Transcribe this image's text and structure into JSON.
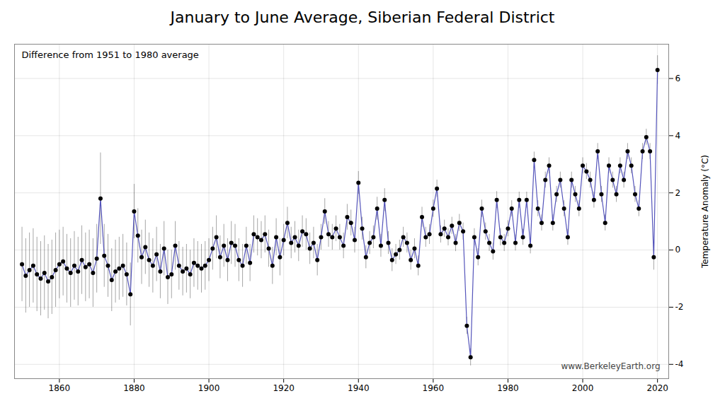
{
  "chart_data": {
    "type": "line",
    "title": "January to June Average, Siberian Federal District",
    "subtitle": "Difference from 1951 to 1980 average",
    "ylabel": "Temperature Anomaly (°C)",
    "annotations": [
      "www.BerkeleyEarth.org"
    ],
    "color": "#5555bb",
    "marker": "dot",
    "grid": true,
    "xlim": [
      1848,
      2023
    ],
    "ylim": [
      -4.5,
      7.2
    ],
    "xticks": [
      1860,
      1880,
      1900,
      1920,
      1940,
      1960,
      1980,
      2000,
      2020
    ],
    "yticks": [
      -4,
      -2,
      0,
      2,
      4,
      6
    ],
    "x": [
      1850,
      1851,
      1852,
      1853,
      1854,
      1855,
      1856,
      1857,
      1858,
      1859,
      1860,
      1861,
      1862,
      1863,
      1864,
      1865,
      1866,
      1867,
      1868,
      1869,
      1870,
      1871,
      1872,
      1873,
      1874,
      1875,
      1876,
      1877,
      1878,
      1879,
      1880,
      1881,
      1882,
      1883,
      1884,
      1885,
      1886,
      1887,
      1888,
      1889,
      1890,
      1891,
      1892,
      1893,
      1894,
      1895,
      1896,
      1897,
      1898,
      1899,
      1900,
      1901,
      1902,
      1903,
      1904,
      1905,
      1906,
      1907,
      1908,
      1909,
      1910,
      1911,
      1912,
      1913,
      1914,
      1915,
      1916,
      1917,
      1918,
      1919,
      1920,
      1921,
      1922,
      1923,
      1924,
      1925,
      1926,
      1927,
      1928,
      1929,
      1930,
      1931,
      1932,
      1933,
      1934,
      1935,
      1936,
      1937,
      1938,
      1939,
      1940,
      1941,
      1942,
      1943,
      1944,
      1945,
      1946,
      1947,
      1948,
      1949,
      1950,
      1951,
      1952,
      1953,
      1954,
      1955,
      1956,
      1957,
      1958,
      1959,
      1960,
      1961,
      1962,
      1963,
      1964,
      1965,
      1966,
      1967,
      1968,
      1969,
      1970,
      1971,
      1972,
      1973,
      1974,
      1975,
      1976,
      1977,
      1978,
      1979,
      1980,
      1981,
      1982,
      1983,
      1984,
      1985,
      1986,
      1987,
      1988,
      1989,
      1990,
      1991,
      1992,
      1993,
      1994,
      1995,
      1996,
      1997,
      1998,
      1999,
      2000,
      2001,
      2002,
      2003,
      2004,
      2005,
      2006,
      2007,
      2008,
      2009,
      2010,
      2011,
      2012,
      2013,
      2014,
      2015,
      2016,
      2017,
      2018,
      2019,
      2020
    ],
    "values": [
      -0.5,
      -0.9,
      -0.7,
      -0.55,
      -0.85,
      -1.0,
      -0.8,
      -1.1,
      -0.95,
      -0.7,
      -0.5,
      -0.4,
      -0.65,
      -0.8,
      -0.55,
      -0.75,
      -0.35,
      -0.6,
      -0.5,
      -0.8,
      -0.3,
      1.8,
      -0.2,
      -0.55,
      -1.05,
      -0.75,
      -0.65,
      -0.55,
      -0.85,
      -1.55,
      1.35,
      0.5,
      -0.25,
      0.1,
      -0.35,
      -0.55,
      -0.15,
      -0.75,
      0.05,
      -0.95,
      -0.85,
      0.15,
      -0.55,
      -0.75,
      -0.65,
      -0.85,
      -0.45,
      -0.55,
      -0.65,
      -0.55,
      -0.35,
      0.05,
      0.45,
      -0.25,
      0.15,
      -0.35,
      0.25,
      0.15,
      -0.35,
      -0.55,
      0.15,
      -0.45,
      0.55,
      0.45,
      0.35,
      0.55,
      0.05,
      -0.55,
      0.45,
      -0.25,
      0.35,
      0.95,
      0.25,
      0.45,
      0.15,
      0.65,
      0.55,
      0.05,
      0.25,
      -0.35,
      0.45,
      1.35,
      0.55,
      0.45,
      0.75,
      0.45,
      0.15,
      1.15,
      0.95,
      0.35,
      2.35,
      0.75,
      -0.25,
      0.25,
      0.45,
      1.45,
      0.15,
      1.75,
      0.25,
      -0.35,
      -0.15,
      0.0,
      0.45,
      0.25,
      -0.35,
      0.05,
      -0.55,
      1.15,
      0.45,
      0.55,
      1.45,
      2.15,
      0.55,
      0.75,
      0.45,
      0.85,
      0.25,
      0.95,
      0.65,
      -2.65,
      -3.75,
      0.45,
      -0.25,
      1.45,
      0.65,
      0.25,
      -0.05,
      1.75,
      0.45,
      0.25,
      0.75,
      1.45,
      0.25,
      1.75,
      0.45,
      1.75,
      0.15,
      3.15,
      1.45,
      0.95,
      2.45,
      2.95,
      0.95,
      1.95,
      2.45,
      1.45,
      0.45,
      2.45,
      1.95,
      1.45,
      2.95,
      2.75,
      2.45,
      1.75,
      3.45,
      1.95,
      0.95,
      2.95,
      2.45,
      1.95,
      2.95,
      2.45,
      3.45,
      2.95,
      1.95,
      1.45,
      3.45,
      3.95,
      3.45,
      -0.25,
      6.3
    ],
    "error": [
      1.3,
      1.3,
      1.3,
      1.3,
      1.3,
      1.3,
      1.3,
      1.3,
      1.3,
      1.3,
      1.2,
      1.2,
      1.2,
      1.2,
      1.2,
      1.2,
      1.2,
      1.2,
      1.2,
      1.2,
      1.2,
      1.6,
      1.1,
      1.1,
      1.1,
      1.1,
      1.1,
      1.1,
      1.1,
      1.1,
      0.95,
      0.95,
      0.95,
      0.95,
      0.95,
      0.95,
      0.95,
      0.95,
      0.95,
      0.95,
      0.85,
      0.85,
      0.85,
      0.85,
      0.85,
      0.85,
      0.85,
      0.85,
      0.85,
      0.85,
      0.75,
      0.75,
      0.75,
      0.75,
      0.75,
      0.75,
      0.75,
      0.75,
      0.75,
      0.75,
      0.65,
      0.65,
      0.65,
      0.65,
      0.65,
      0.65,
      0.65,
      0.65,
      0.65,
      0.65,
      0.55,
      0.55,
      0.55,
      0.55,
      0.55,
      0.55,
      0.55,
      0.55,
      0.55,
      0.55,
      0.45,
      0.45,
      0.45,
      0.45,
      0.45,
      0.45,
      0.45,
      0.45,
      0.45,
      0.45,
      0.4,
      0.4,
      0.4,
      0.4,
      0.4,
      0.4,
      0.4,
      0.4,
      0.4,
      0.4,
      0.35,
      0.35,
      0.35,
      0.35,
      0.35,
      0.35,
      0.35,
      0.35,
      0.35,
      0.35,
      0.3,
      0.3,
      0.3,
      0.3,
      0.3,
      0.3,
      0.3,
      0.3,
      0.3,
      0.3,
      0.3,
      0.3,
      0.3,
      0.3,
      0.3,
      0.3,
      0.3,
      0.3,
      0.3,
      0.3,
      0.28,
      0.28,
      0.28,
      0.28,
      0.28,
      0.28,
      0.28,
      0.28,
      0.28,
      0.28,
      0.28,
      0.28,
      0.28,
      0.28,
      0.28,
      0.28,
      0.28,
      0.28,
      0.28,
      0.28,
      0.28,
      0.28,
      0.28,
      0.28,
      0.28,
      0.28,
      0.28,
      0.28,
      0.28,
      0.28,
      0.28,
      0.28,
      0.28,
      0.28,
      0.28,
      0.28,
      0.28,
      0.28,
      0.28,
      0.45,
      0.5
    ]
  }
}
